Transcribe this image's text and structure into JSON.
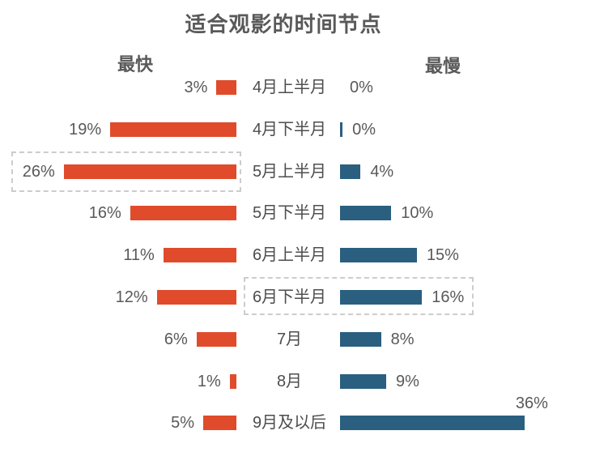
{
  "chart": {
    "title": "适合观影的时间节点",
    "fast_header": "最快",
    "slow_header": "最慢"
  },
  "chart_data": {
    "type": "bar",
    "variant": "diverging-horizontal-bidirectional",
    "title": "适合观影的时间节点",
    "legend_position": "column-headers-top",
    "grid": false,
    "categories": [
      "4月上半月",
      "4月下半月",
      "5月上半月",
      "5月下半月",
      "6月上半月",
      "6月下半月",
      "7月",
      "8月",
      "9月及以后"
    ],
    "series": [
      {
        "name": "最快",
        "direction": "left",
        "color": "#E04B2B",
        "values": [
          3,
          19,
          26,
          16,
          11,
          12,
          6,
          1,
          5
        ],
        "labels": [
          "3%",
          "19%",
          "26%",
          "16%",
          "11%",
          "12%",
          "6%",
          "1%",
          "5%"
        ]
      },
      {
        "name": "最慢",
        "direction": "right",
        "color": "#2A5F80",
        "values": [
          0,
          0.5,
          4,
          10,
          15,
          16,
          8,
          9,
          36
        ],
        "labels": [
          "0%",
          "0%",
          "4%",
          "10%",
          "15%",
          "16%",
          "8%",
          "9%",
          "36%"
        ],
        "label_position_overrides": {
          "8": "above-bar-end"
        }
      }
    ],
    "highlights": [
      {
        "category": "5月上半月",
        "series": "最快",
        "note": "dashed box around fastest 26% bar"
      },
      {
        "category": "6月下半月",
        "series": "最慢",
        "note": "dashed box around category label and slowest 16% bar"
      }
    ],
    "colors": {
      "fast_bar": "#E04B2B",
      "slow_bar": "#2A5F80",
      "text": "#595959",
      "highlight_border": "#cccccc",
      "background": "#ffffff"
    }
  }
}
